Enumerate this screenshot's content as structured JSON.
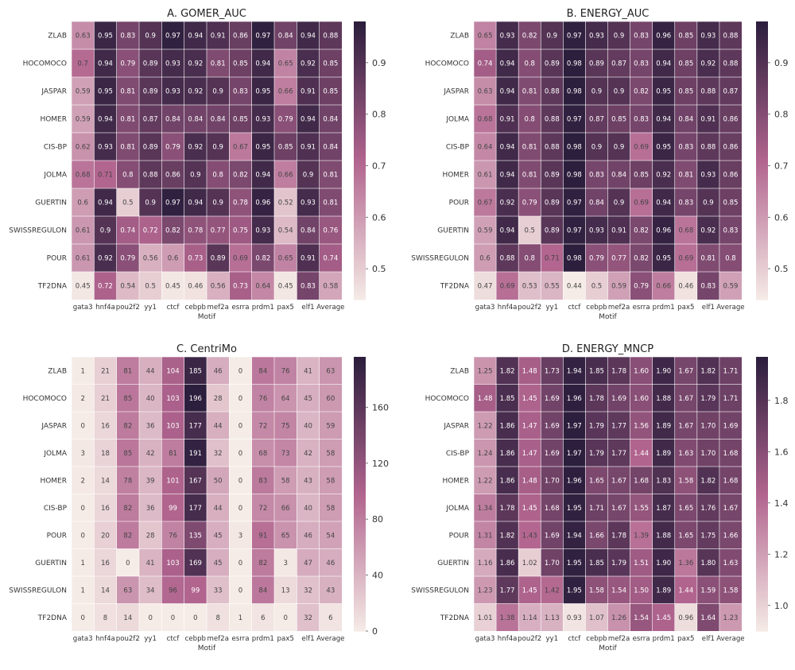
{
  "chart_data": [
    {
      "id": "A",
      "type": "heatmap",
      "title": "A.  GOMER_AUC",
      "xlabel": "Motif",
      "ylabel": "",
      "columns": [
        "gata3",
        "hnf4a",
        "pou2f2",
        "yy1",
        "ctcf",
        "cebpb",
        "mef2a",
        "esrra",
        "prdm1",
        "pax5",
        "elf1",
        "Average"
      ],
      "rows": [
        "ZLAB",
        "HOCOMOCO",
        "JASPAR",
        "HOMER",
        "CIS-BP",
        "JOLMA",
        "GUERTIN",
        "SWISSREGULON",
        "POUR",
        "TF2DNA"
      ],
      "values": [
        [
          0.63,
          0.95,
          0.83,
          0.9,
          0.97,
          0.94,
          0.91,
          0.86,
          0.97,
          0.84,
          0.94,
          0.88
        ],
        [
          0.7,
          0.94,
          0.79,
          0.89,
          0.93,
          0.92,
          0.81,
          0.85,
          0.94,
          0.65,
          0.92,
          0.85
        ],
        [
          0.59,
          0.95,
          0.81,
          0.89,
          0.93,
          0.92,
          0.9,
          0.83,
          0.95,
          0.66,
          0.91,
          0.85
        ],
        [
          0.59,
          0.94,
          0.81,
          0.87,
          0.84,
          0.84,
          0.84,
          0.85,
          0.93,
          0.79,
          0.94,
          0.84
        ],
        [
          0.62,
          0.93,
          0.81,
          0.89,
          0.79,
          0.92,
          0.9,
          0.67,
          0.95,
          0.85,
          0.91,
          0.84
        ],
        [
          0.68,
          0.71,
          0.8,
          0.88,
          0.86,
          0.9,
          0.8,
          0.82,
          0.94,
          0.66,
          0.9,
          0.81
        ],
        [
          0.6,
          0.94,
          0.5,
          0.9,
          0.97,
          0.94,
          0.9,
          0.78,
          0.96,
          0.52,
          0.93,
          0.81
        ],
        [
          0.61,
          0.9,
          0.74,
          0.72,
          0.82,
          0.78,
          0.77,
          0.75,
          0.93,
          0.54,
          0.84,
          0.76
        ],
        [
          0.61,
          0.92,
          0.79,
          0.56,
          0.6,
          0.73,
          0.89,
          0.69,
          0.82,
          0.65,
          0.91,
          0.74
        ],
        [
          0.45,
          0.72,
          0.54,
          0.5,
          0.45,
          0.46,
          0.56,
          0.73,
          0.64,
          0.45,
          0.83,
          0.58
        ]
      ],
      "decimals": 2,
      "vmin": 0.44,
      "vmax": 0.98,
      "colorbar_ticks": [
        0.5,
        0.6,
        0.7,
        0.8,
        0.9
      ],
      "colorbar_tick_labels": [
        "0.5",
        "0.6",
        "0.7",
        "0.8",
        "0.9"
      ]
    },
    {
      "id": "B",
      "type": "heatmap",
      "title": "B.  ENERGY_AUC",
      "xlabel": "Motif",
      "ylabel": "",
      "columns": [
        "gata3",
        "hnf4a",
        "pou2f2",
        "yy1",
        "ctcf",
        "cebpb",
        "mef2a",
        "esrra",
        "prdm1",
        "pax5",
        "elf1",
        "Average"
      ],
      "rows": [
        "ZLAB",
        "HOCOMOCO",
        "JASPAR",
        "JOLMA",
        "CIS-BP",
        "HOMER",
        "POUR",
        "GUERTIN",
        "SWISSREGULON",
        "TF2DNA"
      ],
      "values": [
        [
          0.65,
          0.93,
          0.82,
          0.9,
          0.97,
          0.93,
          0.9,
          0.83,
          0.96,
          0.85,
          0.93,
          0.88
        ],
        [
          0.74,
          0.94,
          0.8,
          0.89,
          0.98,
          0.89,
          0.87,
          0.83,
          0.94,
          0.85,
          0.92,
          0.88
        ],
        [
          0.63,
          0.94,
          0.81,
          0.88,
          0.98,
          0.9,
          0.9,
          0.82,
          0.95,
          0.85,
          0.88,
          0.87
        ],
        [
          0.68,
          0.91,
          0.8,
          0.88,
          0.97,
          0.87,
          0.85,
          0.83,
          0.94,
          0.84,
          0.91,
          0.86
        ],
        [
          0.64,
          0.94,
          0.81,
          0.88,
          0.98,
          0.9,
          0.9,
          0.69,
          0.95,
          0.83,
          0.88,
          0.86
        ],
        [
          0.61,
          0.94,
          0.81,
          0.89,
          0.98,
          0.83,
          0.84,
          0.85,
          0.92,
          0.81,
          0.93,
          0.86
        ],
        [
          0.67,
          0.92,
          0.79,
          0.89,
          0.97,
          0.84,
          0.9,
          0.69,
          0.94,
          0.83,
          0.9,
          0.85
        ],
        [
          0.59,
          0.94,
          0.5,
          0.89,
          0.97,
          0.93,
          0.91,
          0.82,
          0.96,
          0.68,
          0.92,
          0.83
        ],
        [
          0.6,
          0.88,
          0.8,
          0.71,
          0.98,
          0.79,
          0.77,
          0.82,
          0.95,
          0.69,
          0.81,
          0.8
        ],
        [
          0.47,
          0.69,
          0.53,
          0.55,
          0.44,
          0.5,
          0.59,
          0.79,
          0.66,
          0.46,
          0.83,
          0.59
        ]
      ],
      "decimals": 2,
      "vmin": 0.44,
      "vmax": 0.98,
      "colorbar_ticks": [
        0.5,
        0.6,
        0.7,
        0.8,
        0.9
      ],
      "colorbar_tick_labels": [
        "0.5",
        "0.6",
        "0.7",
        "0.8",
        "0.9"
      ]
    },
    {
      "id": "C",
      "type": "heatmap",
      "title": "C.  CentriMo",
      "xlabel": "Motif",
      "ylabel": "",
      "columns": [
        "gata3",
        "hnf4a",
        "pou2f2",
        "yy1",
        "ctcf",
        "cebpb",
        "mef2a",
        "esrra",
        "prdm1",
        "pax5",
        "elf1",
        "Average"
      ],
      "rows": [
        "ZLAB",
        "HOCOMOCO",
        "JASPAR",
        "JOLMA",
        "HOMER",
        "CIS-BP",
        "POUR",
        "GUERTIN",
        "SWISSREGULON",
        "TF2DNA"
      ],
      "values": [
        [
          1,
          21,
          81,
          44,
          104,
          185,
          46,
          0,
          84,
          76,
          41,
          63
        ],
        [
          2,
          21,
          85,
          40,
          103,
          196,
          28,
          0,
          76,
          64,
          45,
          60
        ],
        [
          0,
          16,
          82,
          36,
          103,
          177,
          44,
          0,
          72,
          75,
          40,
          59
        ],
        [
          3,
          18,
          85,
          42,
          81,
          191,
          32,
          0,
          68,
          73,
          42,
          58
        ],
        [
          2,
          14,
          78,
          39,
          101,
          167,
          50,
          0,
          83,
          58,
          43,
          58
        ],
        [
          0,
          16,
          82,
          36,
          99,
          177,
          44,
          0,
          72,
          66,
          40,
          58
        ],
        [
          0,
          20,
          82,
          28,
          76,
          135,
          45,
          3,
          91,
          65,
          46,
          54
        ],
        [
          1,
          16,
          0,
          41,
          103,
          169,
          45,
          0,
          82,
          3,
          47,
          46
        ],
        [
          1,
          14,
          63,
          34,
          96,
          99,
          33,
          0,
          84,
          13,
          32,
          43
        ],
        [
          0,
          8,
          14,
          0,
          0,
          0,
          8,
          1,
          6,
          0,
          32,
          6
        ]
      ],
      "decimals": 0,
      "vmin": 0,
      "vmax": 196,
      "colorbar_ticks": [
        0,
        40,
        80,
        120,
        160
      ],
      "colorbar_tick_labels": [
        "0",
        "40",
        "80",
        "120",
        "160"
      ]
    },
    {
      "id": "D",
      "type": "heatmap",
      "title": "D.  ENERGY_MNCP",
      "xlabel": "Motif",
      "ylabel": "",
      "columns": [
        "gata3",
        "hnf4a",
        "pou2f2",
        "yy1",
        "ctcf",
        "cebpb",
        "mef2a",
        "esrra",
        "prdm1",
        "pax5",
        "elf1",
        "Average"
      ],
      "rows": [
        "ZLAB",
        "HOCOMOCO",
        "JASPAR",
        "CIS-BP",
        "HOMER",
        "JOLMA",
        "POUR",
        "GUERTIN",
        "SWISSREGULON",
        "TF2DNA"
      ],
      "values": [
        [
          1.25,
          1.82,
          1.48,
          1.73,
          1.94,
          1.85,
          1.78,
          1.6,
          1.9,
          1.67,
          1.82,
          1.71
        ],
        [
          1.48,
          1.85,
          1.45,
          1.69,
          1.96,
          1.78,
          1.69,
          1.6,
          1.88,
          1.67,
          1.79,
          1.71
        ],
        [
          1.22,
          1.86,
          1.47,
          1.69,
          1.97,
          1.79,
          1.77,
          1.56,
          1.89,
          1.67,
          1.7,
          1.69
        ],
        [
          1.24,
          1.86,
          1.47,
          1.69,
          1.97,
          1.79,
          1.77,
          1.44,
          1.89,
          1.63,
          1.7,
          1.68
        ],
        [
          1.22,
          1.86,
          1.48,
          1.7,
          1.96,
          1.65,
          1.67,
          1.68,
          1.83,
          1.58,
          1.82,
          1.68
        ],
        [
          1.34,
          1.78,
          1.45,
          1.68,
          1.95,
          1.71,
          1.67,
          1.55,
          1.87,
          1.65,
          1.76,
          1.67
        ],
        [
          1.31,
          1.82,
          1.43,
          1.69,
          1.94,
          1.66,
          1.78,
          1.39,
          1.88,
          1.65,
          1.75,
          1.66
        ],
        [
          1.16,
          1.86,
          1.02,
          1.7,
          1.95,
          1.85,
          1.79,
          1.51,
          1.9,
          1.36,
          1.8,
          1.63
        ],
        [
          1.23,
          1.77,
          1.45,
          1.42,
          1.95,
          1.58,
          1.54,
          1.5,
          1.89,
          1.44,
          1.59,
          1.58
        ],
        [
          1.01,
          1.38,
          1.14,
          1.13,
          0.93,
          1.07,
          1.26,
          1.54,
          1.45,
          0.96,
          1.64,
          1.23
        ]
      ],
      "decimals": 2,
      "vmin": 0.9,
      "vmax": 1.97,
      "colorbar_ticks": [
        1.0,
        1.2,
        1.4,
        1.6,
        1.8
      ],
      "colorbar_tick_labels": [
        "1.0",
        "1.2",
        "1.4",
        "1.6",
        "1.8"
      ]
    }
  ],
  "colors": {
    "low": "#f6ece7",
    "mid": "#b2658f",
    "high": "#2c1e3d",
    "text_dark": "#444444",
    "text_light": "#ffffff"
  }
}
